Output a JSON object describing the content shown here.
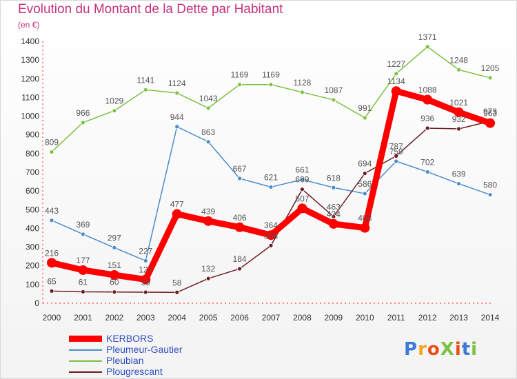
{
  "title": "Evolution du Montant de la Dette par Habitant",
  "unit": "(en €)",
  "brand": {
    "text": "ProXiti",
    "colors": [
      "#3a7bd5",
      "#f2a81d",
      "#e94e1b",
      "#7cc142",
      "#e94e1b",
      "#3a7bd5",
      "#7cc142"
    ]
  },
  "chart_data": {
    "type": "line",
    "title": "Evolution du Montant de la Dette par Habitant",
    "ylabel": "(en €)",
    "xlabel": "",
    "x": [
      "2000",
      "2001",
      "2002",
      "2003",
      "2004",
      "2005",
      "2006",
      "2007",
      "2008",
      "2009",
      "2010",
      "2011",
      "2012",
      "2013",
      "2014"
    ],
    "ylim": [
      0,
      1400
    ],
    "yticks": [
      "0",
      "100",
      "200",
      "300",
      "400",
      "500",
      "600",
      "700",
      "800",
      "900",
      "1000",
      "1100",
      "1200",
      "1300",
      "1400"
    ],
    "grid": false,
    "legend_position": "bottom-left",
    "series": [
      {
        "name": "Pleubian",
        "color": "#7cc142",
        "values": [
          809,
          966,
          1029,
          1141,
          1124,
          1043,
          1169,
          1169,
          1128,
          1087,
          991,
          1227,
          1371,
          1248,
          1205
        ],
        "labels": [
          "809",
          "966",
          "1029",
          "1141",
          "1124",
          "1043",
          "1169",
          "1169",
          "1128",
          "1087",
          "991",
          "1227",
          "1371",
          "1248",
          "1205"
        ]
      },
      {
        "name": "Pleumeur-Gautier",
        "color": "#4a8cc9",
        "values": [
          443,
          369,
          297,
          227,
          944,
          863,
          667,
          621,
          661,
          618,
          586,
          759,
          702,
          639,
          580
        ],
        "labels": [
          "443",
          "369",
          "297",
          "227",
          "944",
          "863",
          "667",
          "621",
          "661",
          "618",
          "586",
          "759",
          "702",
          "639",
          "580"
        ]
      },
      {
        "name": "Plougrescant",
        "color": "#6b1d22",
        "values": [
          65,
          61,
          60,
          59,
          58,
          132,
          184,
          308,
          609,
          463,
          694,
          787,
          936,
          932,
          973
        ],
        "labels": [
          "65",
          "61",
          "60",
          "59",
          "58",
          "132",
          "184",
          "308",
          "609",
          "463",
          "694",
          "787",
          "936",
          "932",
          "973"
        ]
      },
      {
        "name": "KERBORS",
        "color": "#ff0000",
        "values": [
          216,
          177,
          151,
          127,
          477,
          439,
          406,
          364,
          507,
          424,
          403,
          1134,
          1088,
          1021,
          963
        ],
        "labels": [
          "216",
          "177",
          "151",
          "127",
          "477",
          "439",
          "406",
          "364",
          "507",
          "424",
          "403",
          "1134",
          "1088",
          "1021",
          "963"
        ]
      }
    ]
  },
  "legend": [
    {
      "name": "KERBORS",
      "color": "#ff0000",
      "thick": true
    },
    {
      "name": "Pleumeur-Gautier",
      "color": "#4a8cc9",
      "thick": false
    },
    {
      "name": "Pleubian",
      "color": "#7cc142",
      "thick": false
    },
    {
      "name": "Plougrescant",
      "color": "#6b1d22",
      "thick": false
    }
  ]
}
